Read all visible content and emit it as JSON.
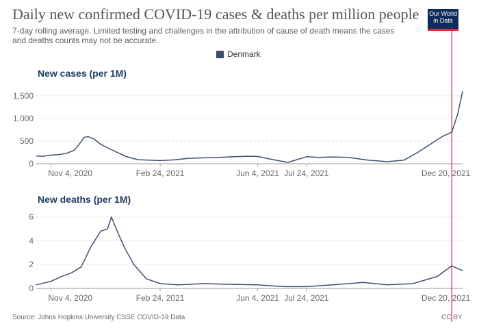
{
  "header": {
    "title": "Daily new confirmed COVID-19 cases & deaths per million people",
    "subtitle": "7-day rolling average. Limited testing and challenges in the attribution of cause of death means the cases and deaths counts may not be accurate.",
    "logo_lines": [
      "Our World",
      "in Data"
    ]
  },
  "legend": {
    "label": "Denmark",
    "color": "#3d4f6e"
  },
  "footer": {
    "source": "Source: Johns Hopkins University CSSE COVID-19 Data",
    "license": "CC BY"
  },
  "colors": {
    "series": "#3d4f6e",
    "marker": "#e0263a",
    "logo_bg": "#0d2b5b"
  },
  "chart_data": [
    {
      "type": "line",
      "title": "New cases (per 1M)",
      "series": [
        {
          "name": "Denmark",
          "x": [
            "2020-10-20",
            "2020-10-27",
            "2020-11-04",
            "2020-11-12",
            "2020-11-20",
            "2020-11-28",
            "2020-12-03",
            "2020-12-08",
            "2020-12-12",
            "2020-12-18",
            "2020-12-25",
            "2021-01-02",
            "2021-01-10",
            "2021-01-20",
            "2021-02-01",
            "2021-02-24",
            "2021-03-10",
            "2021-03-25",
            "2021-04-10",
            "2021-04-25",
            "2021-05-10",
            "2021-05-25",
            "2021-06-04",
            "2021-06-20",
            "2021-07-05",
            "2021-07-24",
            "2021-08-05",
            "2021-08-20",
            "2021-09-05",
            "2021-09-25",
            "2021-10-15",
            "2021-11-01",
            "2021-11-15",
            "2021-11-30",
            "2021-12-10",
            "2021-12-20",
            "2021-12-26",
            "2021-12-31"
          ],
          "values": [
            170,
            165,
            190,
            200,
            230,
            300,
            430,
            580,
            600,
            550,
            430,
            340,
            260,
            160,
            90,
            70,
            85,
            120,
            130,
            140,
            155,
            165,
            160,
            90,
            30,
            155,
            140,
            150,
            140,
            80,
            45,
            80,
            250,
            460,
            600,
            700,
            1100,
            1600
          ]
        }
      ],
      "x_ticks": [
        "Nov 4, 2020",
        "Feb 24, 2021",
        "Jun 4, 2021",
        "Jul 24, 2021",
        "Dec 20, 2021"
      ],
      "y_ticks": [
        "0",
        "500",
        "1,000",
        "1,500"
      ],
      "ylim": [
        0,
        1650
      ],
      "grid": "horizontal-dashed"
    },
    {
      "type": "line",
      "title": "New deaths (per 1M)",
      "series": [
        {
          "name": "Denmark",
          "x": [
            "2020-10-20",
            "2020-10-30",
            "2020-11-04",
            "2020-11-15",
            "2020-11-25",
            "2020-12-05",
            "2020-12-15",
            "2020-12-25",
            "2021-01-01",
            "2021-01-05",
            "2021-01-10",
            "2021-01-18",
            "2021-01-28",
            "2021-02-10",
            "2021-02-24",
            "2021-03-15",
            "2021-04-10",
            "2021-05-01",
            "2021-06-04",
            "2021-07-01",
            "2021-07-24",
            "2021-08-20",
            "2021-09-20",
            "2021-10-15",
            "2021-11-10",
            "2021-12-05",
            "2021-12-20",
            "2021-12-25",
            "2021-12-31"
          ],
          "values": [
            0.3,
            0.5,
            0.6,
            1.0,
            1.3,
            1.8,
            3.5,
            4.8,
            5.0,
            6.0,
            5.0,
            3.5,
            2.0,
            0.8,
            0.4,
            0.3,
            0.4,
            0.35,
            0.3,
            0.15,
            0.15,
            0.3,
            0.5,
            0.3,
            0.4,
            1.0,
            1.9,
            1.7,
            1.5
          ]
        }
      ],
      "x_ticks": [
        "Nov 4, 2020",
        "Feb 24, 2021",
        "Jun 4, 2021",
        "Jul 24, 2021",
        "Dec 20, 2021"
      ],
      "y_ticks": [
        "0",
        "2",
        "4",
        "6"
      ],
      "ylim": [
        0,
        6.5
      ],
      "grid": "horizontal-dashed"
    }
  ]
}
